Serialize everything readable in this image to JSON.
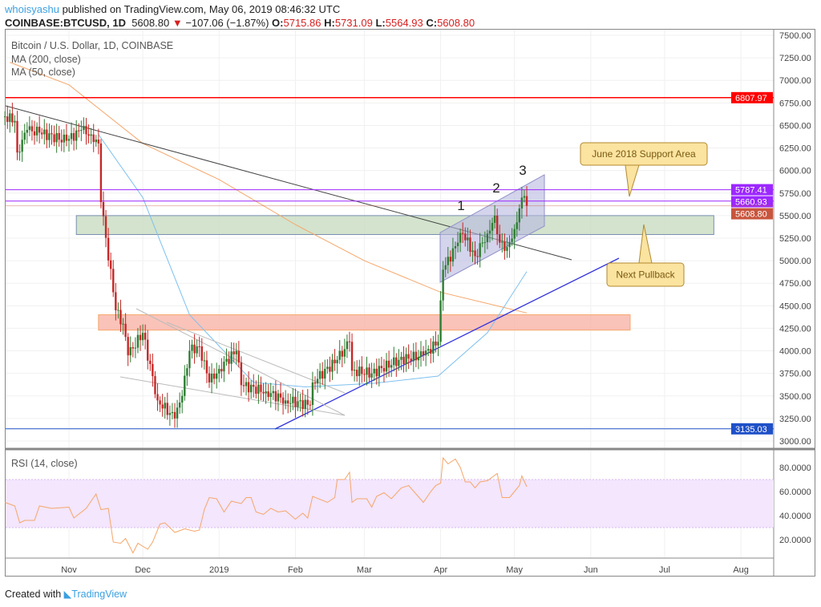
{
  "header": {
    "user": "whoisyashu",
    "published": "published on TradingView.com, May 06, 2019 08:46:32 UTC",
    "symbol": "COINBASE:BTCUSD, 1D",
    "last": "5608.80",
    "arrow": "▼",
    "change": "−107.06 (−1.87%)",
    "o_label": "O:",
    "o": "5715.86",
    "h_label": "H:",
    "h": "5731.09",
    "l_label": "L:",
    "l": "5564.93",
    "c_label": "C:",
    "c": "5608.80"
  },
  "legend": {
    "title": "Bitcoin / U.S. Dollar, 1D, COINBASE",
    "ma200": "MA (200, close)",
    "ma50": "MA (50, close)",
    "rsi": "RSI (14, close)"
  },
  "footer": {
    "created": "Created with",
    "brand": "TradingView"
  },
  "colors": {
    "up": "#2e7d32",
    "down": "#c62828",
    "ma200": "#f5a66a",
    "ma50": "#7ec0ef",
    "rsi": "#f5a66a"
  },
  "chart_data": {
    "type": "candlestick",
    "price_axis": {
      "ticks": [
        3000,
        3250,
        3500,
        3750,
        4000,
        4250,
        4500,
        4750,
        5000,
        5250,
        5500,
        5750,
        6000,
        6250,
        6500,
        6750,
        7000,
        7250,
        7500
      ],
      "range": [
        3000,
        7500
      ]
    },
    "rsi_axis": {
      "ticks": [
        "20.0000",
        "40.0000",
        "60.0000",
        "80.0000"
      ],
      "band": [
        30,
        70
      ]
    },
    "x_ticks": [
      {
        "label": "Nov",
        "date": "2018-11-01"
      },
      {
        "label": "Dec",
        "date": "2018-12-01"
      },
      {
        "label": "2019",
        "date": "2019-01-01"
      },
      {
        "label": "Feb",
        "date": "2019-02-01"
      },
      {
        "label": "Mar",
        "date": "2019-03-01"
      },
      {
        "label": "Apr",
        "date": "2019-04-01"
      },
      {
        "label": "May",
        "date": "2019-05-01"
      },
      {
        "label": "Jun",
        "date": "2019-06-01"
      },
      {
        "label": "Jul",
        "date": "2019-07-01"
      },
      {
        "label": "Aug",
        "date": "2019-08-01"
      }
    ],
    "price_path": [
      [
        "2018-10-06",
        6600
      ],
      [
        "2018-10-10",
        6550
      ],
      [
        "2018-10-11",
        6200
      ],
      [
        "2018-10-15",
        6450
      ],
      [
        "2018-10-20",
        6420
      ],
      [
        "2018-10-31",
        6330
      ],
      [
        "2018-11-06",
        6450
      ],
      [
        "2018-11-10",
        6400
      ],
      [
        "2018-11-13",
        6300
      ],
      [
        "2018-11-14",
        5650
      ],
      [
        "2018-11-19",
        4650
      ],
      [
        "2018-11-20",
        4450
      ],
      [
        "2018-11-23",
        4300
      ],
      [
        "2018-11-25",
        3950
      ],
      [
        "2018-12-01",
        4200
      ],
      [
        "2018-12-07",
        3450
      ],
      [
        "2018-12-14",
        3250
      ],
      [
        "2018-12-17",
        3500
      ],
      [
        "2018-12-20",
        4000
      ],
      [
        "2018-12-24",
        4050
      ],
      [
        "2018-12-28",
        3650
      ],
      [
        "2019-01-01",
        3800
      ],
      [
        "2019-01-08",
        4000
      ],
      [
        "2019-01-10",
        3620
      ],
      [
        "2019-01-20",
        3550
      ],
      [
        "2019-01-28",
        3450
      ],
      [
        "2019-02-07",
        3400
      ],
      [
        "2019-02-08",
        3650
      ],
      [
        "2019-02-18",
        3900
      ],
      [
        "2019-02-23",
        4100
      ],
      [
        "2019-02-24",
        3780
      ],
      [
        "2019-03-04",
        3750
      ],
      [
        "2019-03-15",
        3900
      ],
      [
        "2019-03-25",
        3950
      ],
      [
        "2019-03-31",
        4100
      ],
      [
        "2019-04-02",
        4900
      ],
      [
        "2019-04-03",
        4950
      ],
      [
        "2019-04-08",
        5200
      ],
      [
        "2019-04-10",
        5300
      ],
      [
        "2019-04-15",
        5050
      ],
      [
        "2019-04-20",
        5300
      ],
      [
        "2019-04-23",
        5500
      ],
      [
        "2019-04-25",
        5200
      ],
      [
        "2019-04-28",
        5150
      ],
      [
        "2019-05-01",
        5350
      ],
      [
        "2019-05-04",
        5700
      ],
      [
        "2019-05-05",
        5716
      ],
      [
        "2019-05-06",
        5609
      ]
    ],
    "ma200": [
      [
        "2018-10-08",
        7200
      ],
      [
        "2018-11-01",
        6950
      ],
      [
        "2018-12-01",
        6300
      ],
      [
        "2019-01-01",
        5900
      ],
      [
        "2019-02-01",
        5400
      ],
      [
        "2019-03-01",
        5000
      ],
      [
        "2019-04-01",
        4650
      ],
      [
        "2019-05-06",
        4420
      ]
    ],
    "ma50": [
      [
        "2018-11-13",
        6400
      ],
      [
        "2018-12-01",
        5700
      ],
      [
        "2018-12-20",
        4400
      ],
      [
        "2019-01-15",
        3650
      ],
      [
        "2019-02-05",
        3600
      ],
      [
        "2019-03-05",
        3640
      ],
      [
        "2019-03-31",
        3720
      ],
      [
        "2019-04-20",
        4200
      ],
      [
        "2019-05-06",
        4880
      ]
    ],
    "rsi": [
      [
        "2018-10-06",
        51
      ],
      [
        "2018-10-10",
        48
      ],
      [
        "2018-10-12",
        34
      ],
      [
        "2018-10-14",
        36
      ],
      [
        "2018-10-18",
        36
      ],
      [
        "2018-10-20",
        48
      ],
      [
        "2018-10-25",
        46
      ],
      [
        "2018-11-01",
        47
      ],
      [
        "2018-11-03",
        38
      ],
      [
        "2018-11-08",
        46
      ],
      [
        "2018-11-10",
        52
      ],
      [
        "2018-11-12",
        58
      ],
      [
        "2018-11-14",
        45
      ],
      [
        "2018-11-17",
        46
      ],
      [
        "2018-11-19",
        18
      ],
      [
        "2018-11-22",
        17
      ],
      [
        "2018-11-24",
        21
      ],
      [
        "2018-11-27",
        9
      ],
      [
        "2018-11-29",
        17
      ],
      [
        "2018-12-03",
        12
      ],
      [
        "2018-12-05",
        18
      ],
      [
        "2018-12-08",
        33
      ],
      [
        "2018-12-10",
        34
      ],
      [
        "2018-12-14",
        26
      ],
      [
        "2018-12-18",
        29
      ],
      [
        "2018-12-22",
        27
      ],
      [
        "2018-12-24",
        28
      ],
      [
        "2018-12-26",
        45
      ],
      [
        "2018-12-28",
        55
      ],
      [
        "2018-12-31",
        54
      ],
      [
        "2019-01-03",
        43
      ],
      [
        "2019-01-06",
        52
      ],
      [
        "2019-01-10",
        50
      ],
      [
        "2019-01-12",
        55
      ],
      [
        "2019-01-14",
        55
      ],
      [
        "2019-01-16",
        43
      ],
      [
        "2019-01-19",
        41
      ],
      [
        "2019-01-22",
        46
      ],
      [
        "2019-01-25",
        43
      ],
      [
        "2019-01-28",
        44
      ],
      [
        "2019-02-01",
        37
      ],
      [
        "2019-02-04",
        42
      ],
      [
        "2019-02-06",
        38
      ],
      [
        "2019-02-08",
        56
      ],
      [
        "2019-02-14",
        51
      ],
      [
        "2019-02-17",
        55
      ],
      [
        "2019-02-18",
        70
      ],
      [
        "2019-02-21",
        70
      ],
      [
        "2019-02-23",
        76
      ],
      [
        "2019-02-24",
        51
      ],
      [
        "2019-02-26",
        54
      ],
      [
        "2019-03-02",
        54
      ],
      [
        "2019-03-04",
        47
      ],
      [
        "2019-03-06",
        56
      ],
      [
        "2019-03-09",
        59
      ],
      [
        "2019-03-12",
        54
      ],
      [
        "2019-03-16",
        63
      ],
      [
        "2019-03-19",
        65
      ],
      [
        "2019-03-22",
        58
      ],
      [
        "2019-03-25",
        51
      ],
      [
        "2019-03-28",
        60
      ],
      [
        "2019-03-30",
        65
      ],
      [
        "2019-04-01",
        67
      ],
      [
        "2019-04-02",
        88
      ],
      [
        "2019-04-04",
        83
      ],
      [
        "2019-04-07",
        87
      ],
      [
        "2019-04-09",
        80
      ],
      [
        "2019-04-11",
        68
      ],
      [
        "2019-04-13",
        68
      ],
      [
        "2019-04-15",
        63
      ],
      [
        "2019-04-17",
        68
      ],
      [
        "2019-04-20",
        69
      ],
      [
        "2019-04-24",
        75
      ],
      [
        "2019-04-26",
        55
      ],
      [
        "2019-04-29",
        55
      ],
      [
        "2019-05-01",
        60
      ],
      [
        "2019-05-03",
        65
      ],
      [
        "2019-05-04",
        73
      ],
      [
        "2019-05-06",
        64
      ]
    ],
    "levels": [
      {
        "price": 6807.97,
        "label": "6807.97",
        "color": "#ff0000"
      },
      {
        "price": 5787.41,
        "label": "5787.41",
        "color": "#9c27ff"
      },
      {
        "price": 5660.93,
        "label": "5660.93",
        "color": "#9c27ff"
      },
      {
        "price": 5608.8,
        "label": "5608.80",
        "color": "#c8553d"
      },
      {
        "price": 3135.03,
        "label": "3135.03",
        "color": "#1e50c8"
      }
    ],
    "zones": [
      {
        "from": "2018-11-04",
        "to": "2019-07-21",
        "low": 5290,
        "high": 5500,
        "color": "#c8dcc0"
      },
      {
        "from": "2018-11-13",
        "to": "2019-06-17",
        "low": 4230,
        "high": 4400,
        "color": "#f9b4a8"
      }
    ],
    "wave_labels": [
      "1",
      "2",
      "3"
    ],
    "callouts": [
      {
        "text": "June 2018 Support Area"
      },
      {
        "text": "Next Pullback"
      }
    ]
  }
}
